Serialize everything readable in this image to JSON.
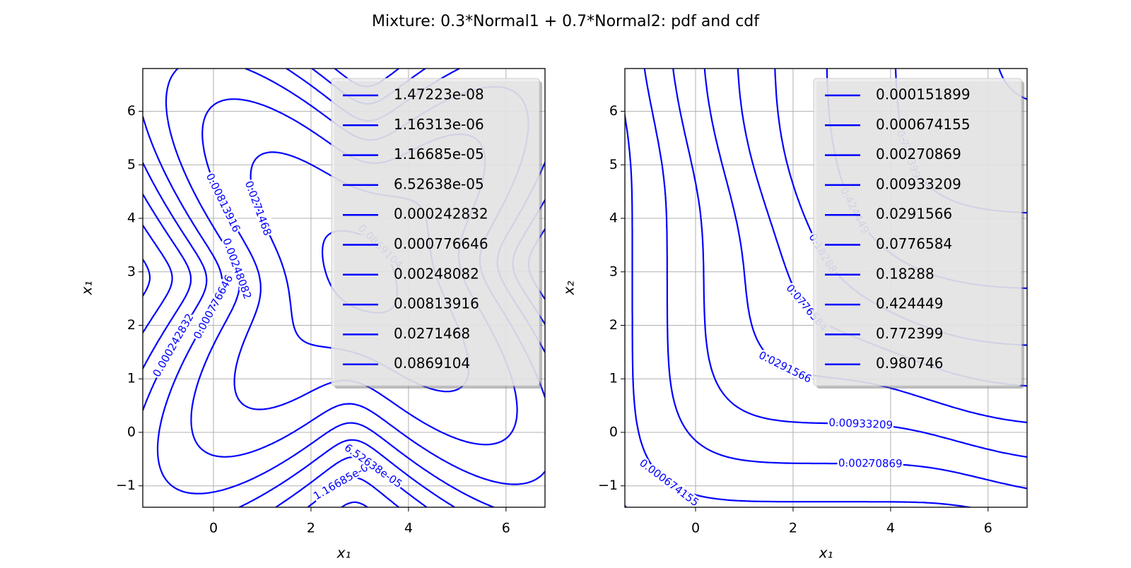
{
  "title": "Mixture: 0.3*Normal1 + 0.7*Normal2: pdf and cdf",
  "chart_data": [
    {
      "type": "contour",
      "field": "pdf",
      "xlabel": "x₁",
      "ylabel": "x₁",
      "xlim": [
        -1.45,
        6.8
      ],
      "ylim": [
        -1.4,
        6.8
      ],
      "xticks": [
        0,
        2,
        4,
        6
      ],
      "yticks": [
        {
          "value": -1,
          "label": "−1"
        },
        0,
        1,
        2,
        3,
        4,
        5,
        6
      ],
      "grid": true,
      "color": "#0000ff",
      "legend": "upper right",
      "levels": [
        {
          "value": 1.47223e-08,
          "label": "1.47223e-08"
        },
        {
          "value": 1.16313e-06,
          "label": "1.16313e-06"
        },
        {
          "value": 1.16685e-05,
          "label": "1.16685e-05"
        },
        {
          "value": 6.52638e-05,
          "label": "6.52638e-05"
        },
        0.000242832,
        0.000776646,
        0.00248082,
        0.00813916,
        0.0271468,
        0.0869104
      ]
    },
    {
      "type": "contour",
      "field": "cdf",
      "xlabel": "x₁",
      "ylabel": "x₂",
      "xlim": [
        -1.45,
        6.8
      ],
      "ylim": [
        -1.4,
        6.8
      ],
      "xticks": [
        0,
        2,
        4,
        6
      ],
      "yticks": [
        {
          "value": -1,
          "label": "−1"
        },
        0,
        1,
        2,
        3,
        4,
        5,
        6
      ],
      "grid": true,
      "color": "#0000ff",
      "legend": "upper right",
      "levels": [
        0.000151899,
        0.000674155,
        0.00270869,
        0.00933209,
        0.0291566,
        0.0776584,
        0.18288,
        0.424449,
        0.772399,
        0.980746
      ]
    }
  ]
}
